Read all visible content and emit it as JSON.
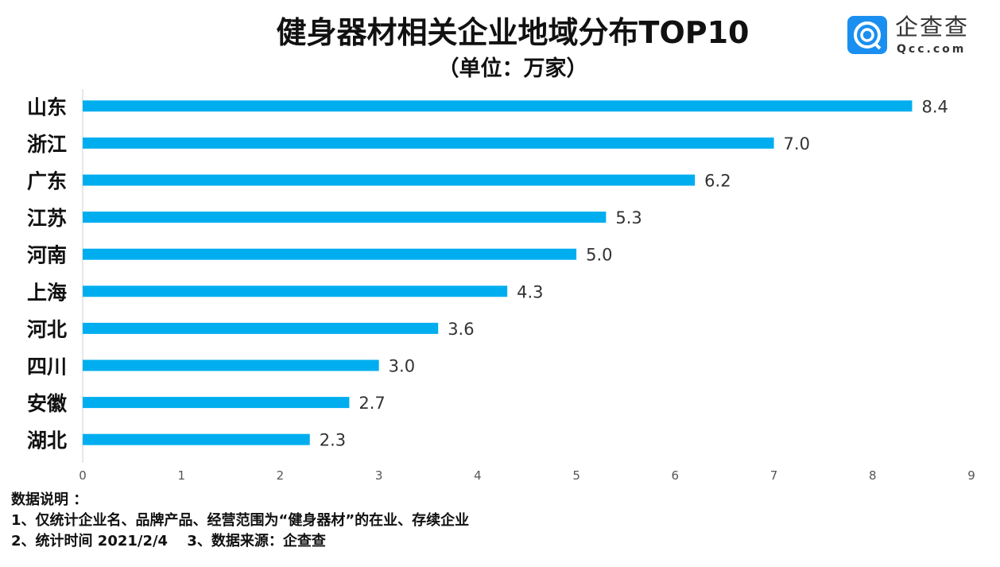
{
  "title": "健身器材相关企业地域分布TOP10",
  "subtitle": "（单位：万家）",
  "logo": {
    "cn": "企查查",
    "en": "Qcc.com"
  },
  "notes": {
    "heading": "数据说明 ：",
    "line1": "1、仅统计企业名、品牌产品、经营范围为“健身器材”的在业、存续企业",
    "line2": "2、统计时间 2021/2/4　 3、数据来源：企查查"
  },
  "chart_data": {
    "type": "bar",
    "orientation": "horizontal",
    "title": "健身器材相关企业地域分布TOP10",
    "unit": "万家",
    "categories": [
      "山东",
      "浙江",
      "广东",
      "江苏",
      "河南",
      "上海",
      "河北",
      "四川",
      "安徽",
      "湖北"
    ],
    "values": [
      8.4,
      7.0,
      6.2,
      5.3,
      5.0,
      4.3,
      3.6,
      3.0,
      2.7,
      2.3
    ],
    "xlim": [
      0,
      9
    ],
    "xticks": [
      0,
      1,
      2,
      3,
      4,
      5,
      6,
      7,
      8,
      9
    ],
    "bar_color": "#00aeef",
    "grid": false,
    "legend": "none"
  }
}
